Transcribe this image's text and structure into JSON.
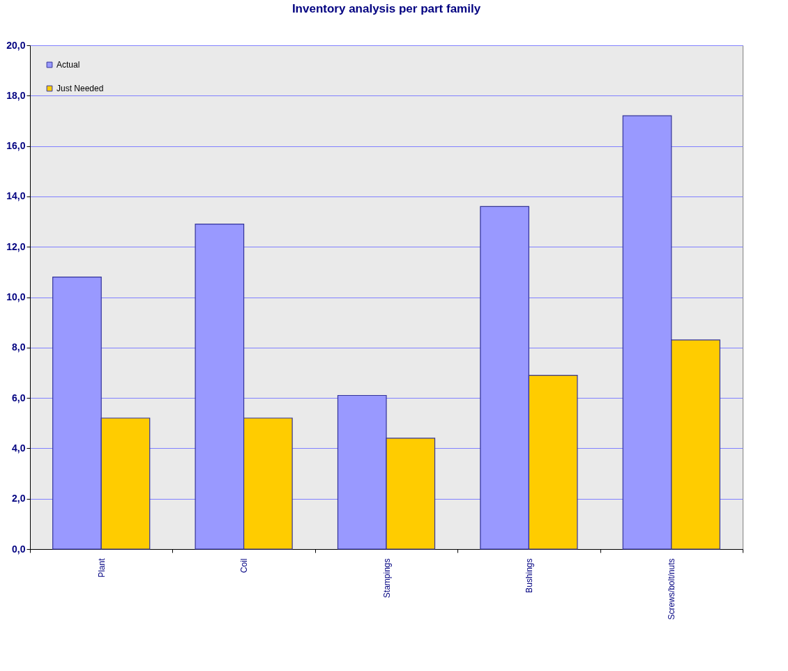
{
  "chart_data": {
    "type": "bar",
    "title": "Inventory analysis per part family",
    "categories": [
      "Plant",
      "Coil",
      "Stampings",
      "Bushings",
      "Screws/bolt/nuts"
    ],
    "series": [
      {
        "name": "Actual",
        "color": "#9999ff",
        "values": [
          10.8,
          12.9,
          6.1,
          13.6,
          17.2
        ]
      },
      {
        "name": "Just Needed",
        "color": "#ffcc00",
        "values": [
          5.2,
          5.2,
          4.4,
          6.9,
          8.3
        ]
      }
    ],
    "ylim": [
      0,
      20
    ],
    "yticks": [
      {
        "value": 0,
        "label": "0,0"
      },
      {
        "value": 2,
        "label": "2,0"
      },
      {
        "value": 4,
        "label": "4,0"
      },
      {
        "value": 6,
        "label": "6,0"
      },
      {
        "value": 8,
        "label": "8,0"
      },
      {
        "value": 10,
        "label": "10,0"
      },
      {
        "value": 12,
        "label": "12,0"
      },
      {
        "value": 14,
        "label": "14,0"
      },
      {
        "value": 16,
        "label": "16,0"
      },
      {
        "value": 18,
        "label": "18,0"
      },
      {
        "value": 20,
        "label": "20,0"
      }
    ],
    "grid": "y",
    "legend": "top left"
  }
}
